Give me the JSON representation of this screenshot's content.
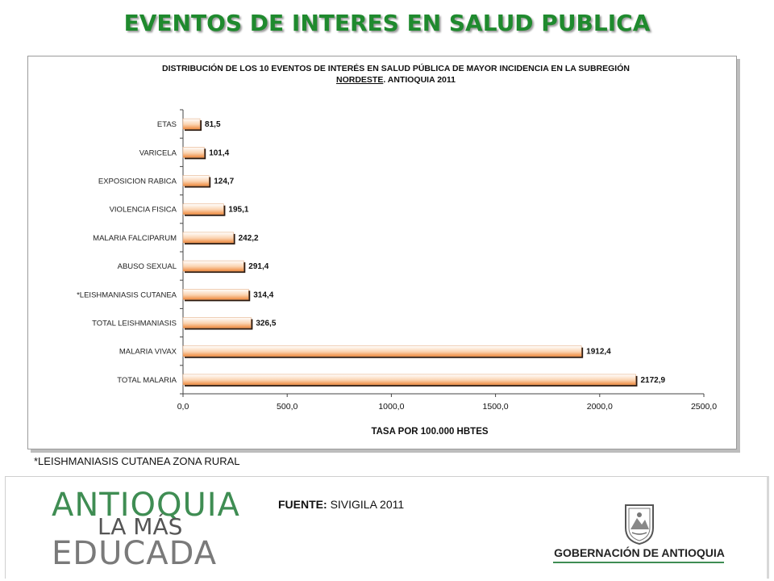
{
  "page": {
    "title": "EVENTOS DE INTERES EN SALUD PUBLICA",
    "footnote": "*LEISHMANIASIS CUTANEA ZONA RURAL",
    "source_label": "FUENTE:",
    "source_value": "SIVIGILA 2011"
  },
  "logos": {
    "left_line1": "ANTIOQUIA",
    "left_line2": "LA MÁS",
    "left_line3": "EDUCADA",
    "right_text": "GOBERNACIÓN DE ANTIOQUIA"
  },
  "chart_data": {
    "type": "bar",
    "orientation": "horizontal",
    "title_line1": "DISTRIBUCIÓN DE LOS 10 EVENTOS DE INTERÉS EN SALUD PÚBLICA DE MAYOR INCIDENCIA EN LA SUBREGIÓN",
    "title_line2_bold": "NORDESTE",
    "title_line2_rest": ". ANTIOQUIA 2011",
    "xlabel": "TASA POR 100.000 HBTES",
    "ylabel": "",
    "xlim": [
      0,
      2500
    ],
    "xticks": [
      "0,0",
      "500,0",
      "1000,0",
      "1500,0",
      "2000,0",
      "2500,0"
    ],
    "categories": [
      "ETAS",
      "VARICELA",
      "EXPOSICION RABICA",
      "VIOLENCIA FISICA",
      "MALARIA FALCIPARUM",
      "ABUSO SEXUAL",
      "*LEISHMANIASIS CUTANEA",
      "TOTAL LEISHMANIASIS",
      "MALARIA VIVAX",
      "TOTAL MALARIA"
    ],
    "values": [
      81.5,
      101.4,
      124.7,
      195.1,
      242.2,
      291.4,
      314.4,
      326.5,
      1912.4,
      2172.9
    ],
    "value_labels": [
      "81,5",
      "101,4",
      "124,7",
      "195,1",
      "242,2",
      "291,4",
      "314,4",
      "326,5",
      "1912,4",
      "2172,9"
    ],
    "bar_color": "#f4a460",
    "grid": false
  }
}
